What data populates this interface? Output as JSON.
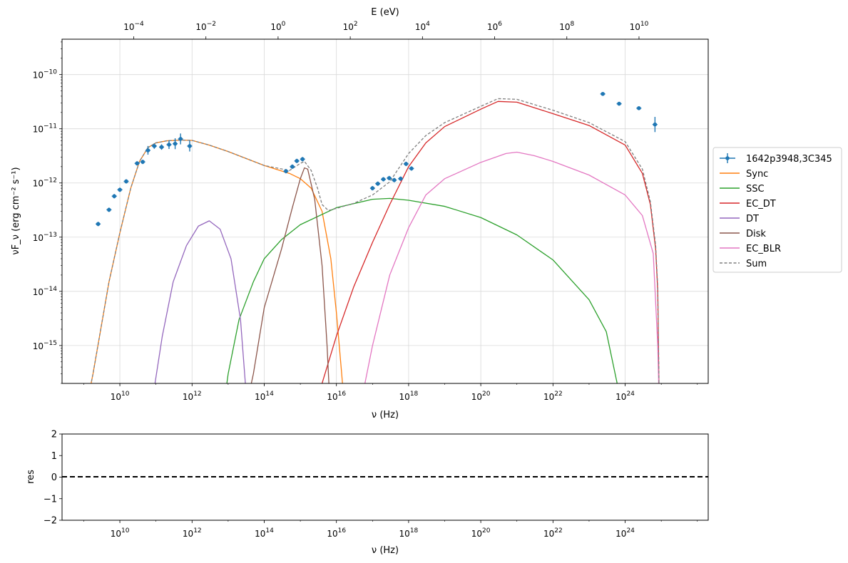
{
  "chart_data": [
    {
      "type": "line",
      "title": "",
      "xlabel": "ν (Hz)",
      "ylabel": "νF_ν (erg cm⁻² s⁻¹)",
      "top_xlabel": "E (eV)",
      "xscale": "log",
      "yscale": "log",
      "xlim": [
        250000000.0,
        2e+26
      ],
      "ylim": [
        2e-16,
        4.5e-10
      ],
      "x_ticks": [
        "10^10",
        "10^12",
        "10^14",
        "10^16",
        "10^18",
        "10^20",
        "10^22",
        "10^24"
      ],
      "y_ticks": [
        "10^-15",
        "10^-14",
        "10^-13",
        "10^-12",
        "10^-11",
        "10^-10"
      ],
      "top_ticks": [
        "10^-4",
        "10^-2",
        "10^0",
        "10^2",
        "10^4",
        "10^6",
        "10^8",
        "10^10"
      ],
      "grid": true,
      "legend_position": "outside-right",
      "observed": {
        "name": "1642p3948,3C345",
        "color": "#1f77b4",
        "points": [
          {
            "x": 2500000000.0,
            "y": 1.75e-13,
            "yerr": 0.04
          },
          {
            "x": 5000000000.0,
            "y": 3.2e-13,
            "yerr": 0.04
          },
          {
            "x": 7000000000.0,
            "y": 5.7e-13,
            "yerr": 0.04
          },
          {
            "x": 10000000000.0,
            "y": 7.5e-13,
            "yerr": 0.04
          },
          {
            "x": 15000000000.0,
            "y": 1.07e-12,
            "yerr": 0.04
          },
          {
            "x": 30000000000.0,
            "y": 2.3e-12,
            "yerr": 0.04
          },
          {
            "x": 43000000000.0,
            "y": 2.45e-12,
            "yerr": 0.04
          },
          {
            "x": 60000000000.0,
            "y": 4e-12,
            "yerr": 0.08
          },
          {
            "x": 90000000000.0,
            "y": 4.8e-12,
            "yerr": 0.05
          },
          {
            "x": 143000000000.0,
            "y": 4.6e-12,
            "yerr": 0.05
          },
          {
            "x": 230000000000.0,
            "y": 5.1e-12,
            "yerr": 0.08
          },
          {
            "x": 340000000000.0,
            "y": 5.3e-12,
            "yerr": 0.1
          },
          {
            "x": 480000000000.0,
            "y": 6.5e-12,
            "yerr": 0.1
          },
          {
            "x": 860000000000.0,
            "y": 4.8e-12,
            "yerr": 0.1
          },
          {
            "x": 400000000000000.0,
            "y": 1.65e-12,
            "yerr": 0.04
          },
          {
            "x": 600000000000000.0,
            "y": 2e-12,
            "yerr": 0.04
          },
          {
            "x": 800000000000000.0,
            "y": 2.55e-12,
            "yerr": 0.04
          },
          {
            "x": 1150000000000000.0,
            "y": 2.75e-12,
            "yerr": 0.04
          },
          {
            "x": 1e+17,
            "y": 8e-13,
            "yerr": 0.04
          },
          {
            "x": 1.4e+17,
            "y": 9.7e-13,
            "yerr": 0.04
          },
          {
            "x": 2e+17,
            "y": 1.17e-12,
            "yerr": 0.04
          },
          {
            "x": 2.9e+17,
            "y": 1.23e-12,
            "yerr": 0.04
          },
          {
            "x": 4e+17,
            "y": 1.13e-12,
            "yerr": 0.04
          },
          {
            "x": 6e+17,
            "y": 1.2e-12,
            "yerr": 0.04
          },
          {
            "x": 8.5e+17,
            "y": 2.25e-12,
            "yerr": 0.04
          },
          {
            "x": 1.2e+18,
            "y": 1.85e-12,
            "yerr": 0.04
          },
          {
            "x": 2.4e+23,
            "y": 4.4e-11,
            "yerr": 0.03
          },
          {
            "x": 6.8e+23,
            "y": 2.9e-11,
            "yerr": 0.03
          },
          {
            "x": 2.4e+24,
            "y": 2.4e-11,
            "yerr": 0.03
          },
          {
            "x": 6.7e+24,
            "y": 1.2e-11,
            "yerr": 0.14
          }
        ]
      },
      "series": [
        {
          "name": "Sync",
          "color": "#ff7f0e",
          "dash": false,
          "points": [
            [
              1300000000.0,
              1e-16
            ],
            [
              1800000000.0,
              3e-16
            ],
            [
              5000000000.0,
              1.5e-14
            ],
            [
              10000000000.0,
              1.2e-13
            ],
            [
              20000000000.0,
              8e-13
            ],
            [
              35000000000.0,
              2.5e-12
            ],
            [
              60000000000.0,
              4.5e-12
            ],
            [
              100000000000.0,
              5.5e-12
            ],
            [
              200000000000.0,
              6e-12
            ],
            [
              500000000000.0,
              6.2e-12
            ],
            [
              1000000000000.0,
              6.1e-12
            ],
            [
              3000000000000.0,
              5e-12
            ],
            [
              10000000000000.0,
              3.8e-12
            ],
            [
              100000000000000.0,
              2.1e-12
            ],
            [
              500000000000000.0,
              1.5e-12
            ],
            [
              1000000000000000.0,
              1.2e-12
            ],
            [
              2000000000000000.0,
              8e-13
            ],
            [
              4000000000000000.0,
              3e-13
            ],
            [
              7000000000000000.0,
              4e-14
            ],
            [
              1e+16,
              4e-15
            ],
            [
              1.4e+16,
              3e-16
            ],
            [
              1.6e+16,
              1e-16
            ]
          ]
        },
        {
          "name": "SSC",
          "color": "#2ca02c",
          "dash": false,
          "points": [
            [
              8000000000000.0,
              1e-16
            ],
            [
              10000000000000.0,
              3e-16
            ],
            [
              20000000000000.0,
              3e-15
            ],
            [
              50000000000000.0,
              1.5e-14
            ],
            [
              100000000000000.0,
              4e-14
            ],
            [
              300000000000000.0,
              9e-14
            ],
            [
              1000000000000000.0,
              1.7e-13
            ],
            [
              1e+16,
              3.5e-13
            ],
            [
              1e+17,
              5e-13
            ],
            [
              3e+17,
              5.2e-13
            ],
            [
              1e+18,
              4.8e-13
            ],
            [
              1e+19,
              3.7e-13
            ],
            [
              1e+20,
              2.3e-13
            ],
            [
              1e+21,
              1.1e-13
            ],
            [
              1e+22,
              3.8e-14
            ],
            [
              1e+23,
              7e-15
            ],
            [
              3e+23,
              1.8e-15
            ],
            [
              6e+23,
              2e-16
            ],
            [
              7e+23,
              1e-16
            ]
          ]
        },
        {
          "name": "EC_DT",
          "color": "#d62728",
          "dash": false,
          "points": [
            [
              2500000000000000.0,
              1e-16
            ],
            [
              4000000000000000.0,
              2e-16
            ],
            [
              1e+16,
              1.5e-15
            ],
            [
              3e+16,
              1.2e-14
            ],
            [
              1e+17,
              8e-14
            ],
            [
              3e+17,
              4e-13
            ],
            [
              1e+18,
              2e-12
            ],
            [
              3e+18,
              5.5e-12
            ],
            [
              1e+19,
              1.1e-11
            ],
            [
              1e+20,
              2.3e-11
            ],
            [
              3e+20,
              3.2e-11
            ],
            [
              1e+21,
              3.1e-11
            ],
            [
              1e+22,
              1.9e-11
            ],
            [
              1e+23,
              1.15e-11
            ],
            [
              1e+24,
              5e-12
            ],
            [
              3e+24,
              1.5e-12
            ],
            [
              5e+24,
              4e-13
            ],
            [
              7e+24,
              6e-14
            ],
            [
              8e+24,
              1e-14
            ],
            [
              8.7e+24,
              1e-16
            ]
          ]
        },
        {
          "name": "DT",
          "color": "#9467bd",
          "dash": false,
          "points": [
            [
              80000000000.0,
              1e-16
            ],
            [
              150000000000.0,
              1.5e-15
            ],
            [
              300000000000.0,
              1.5e-14
            ],
            [
              700000000000.0,
              7e-14
            ],
            [
              1500000000000.0,
              1.6e-13
            ],
            [
              3000000000000.0,
              2e-13
            ],
            [
              6000000000000.0,
              1.4e-13
            ],
            [
              12000000000000.0,
              4e-14
            ],
            [
              22000000000000.0,
              3e-15
            ],
            [
              30000000000000.0,
              2e-16
            ],
            [
              32000000000000.0,
              1e-16
            ]
          ]
        },
        {
          "name": "Disk",
          "color": "#8c564b",
          "dash": false,
          "points": [
            [
              35000000000000.0,
              1e-16
            ],
            [
              50000000000000.0,
              3e-16
            ],
            [
              100000000000000.0,
              5e-15
            ],
            [
              300000000000000.0,
              6e-14
            ],
            [
              600000000000000.0,
              3.5e-13
            ],
            [
              1000000000000000.0,
              1.2e-12
            ],
            [
              1300000000000000.0,
              1.9e-12
            ],
            [
              1600000000000000.0,
              1.8e-12
            ],
            [
              2500000000000000.0,
              5e-13
            ],
            [
              4000000000000000.0,
              3e-14
            ],
            [
              5500000000000000.0,
              1e-15
            ],
            [
              6500000000000000.0,
              1e-16
            ]
          ]
        },
        {
          "name": "EC_BLR",
          "color": "#e377c2",
          "dash": false,
          "points": [
            [
              5e+16,
              1e-16
            ],
            [
              1e+17,
              1e-15
            ],
            [
              3e+17,
              2e-14
            ],
            [
              1e+18,
              1.5e-13
            ],
            [
              3e+18,
              6e-13
            ],
            [
              1e+19,
              1.2e-12
            ],
            [
              1e+20,
              2.4e-12
            ],
            [
              5e+20,
              3.5e-12
            ],
            [
              1e+21,
              3.7e-12
            ],
            [
              3e+21,
              3.2e-12
            ],
            [
              1e+22,
              2.5e-12
            ],
            [
              1e+23,
              1.4e-12
            ],
            [
              1e+24,
              6e-13
            ],
            [
              3e+24,
              2.5e-13
            ],
            [
              6e+24,
              5e-14
            ],
            [
              8e+24,
              1e-15
            ],
            [
              8.7e+24,
              1e-16
            ]
          ]
        },
        {
          "name": "Sum",
          "color": "#7f7f7f",
          "dash": true,
          "points": [
            [
              1300000000.0,
              1e-16
            ],
            [
              1800000000.0,
              3e-16
            ],
            [
              5000000000.0,
              1.5e-14
            ],
            [
              10000000000.0,
              1.2e-13
            ],
            [
              20000000000.0,
              8e-13
            ],
            [
              35000000000.0,
              2.5e-12
            ],
            [
              60000000000.0,
              4.5e-12
            ],
            [
              100000000000.0,
              5.5e-12
            ],
            [
              200000000000.0,
              6e-12
            ],
            [
              500000000000.0,
              6.2e-12
            ],
            [
              1000000000000.0,
              6.1e-12
            ],
            [
              3000000000000.0,
              5e-12
            ],
            [
              10000000000000.0,
              3.8e-12
            ],
            [
              100000000000000.0,
              2.1e-12
            ],
            [
              500000000000000.0,
              1.7e-12
            ],
            [
              1000000000000000.0,
              2.3e-12
            ],
            [
              1300000000000000.0,
              2.5e-12
            ],
            [
              2000000000000000.0,
              1.7e-12
            ],
            [
              3000000000000000.0,
              8e-13
            ],
            [
              4000000000000000.0,
              4e-13
            ],
            [
              6000000000000000.0,
              3.1e-13
            ],
            [
              1e+16,
              3.4e-13
            ],
            [
              3e+16,
              4.2e-13
            ],
            [
              1e+17,
              6e-13
            ],
            [
              3e+17,
              1.05e-12
            ],
            [
              1e+18,
              3.5e-12
            ],
            [
              3e+18,
              7.5e-12
            ],
            [
              1e+19,
              1.3e-11
            ],
            [
              1e+20,
              2.6e-11
            ],
            [
              3e+20,
              3.6e-11
            ],
            [
              1e+21,
              3.5e-11
            ],
            [
              1e+22,
              2.2e-11
            ],
            [
              1e+23,
              1.3e-11
            ],
            [
              1e+24,
              5.8e-12
            ],
            [
              3e+24,
              1.8e-12
            ],
            [
              5e+24,
              4.5e-13
            ],
            [
              7e+24,
              7e-14
            ],
            [
              8e+24,
              1.2e-14
            ],
            [
              8.8e+24,
              1e-16
            ]
          ]
        }
      ]
    },
    {
      "type": "line",
      "title": "",
      "xlabel": "ν (Hz)",
      "ylabel": "res",
      "xscale": "log",
      "xlim": [
        250000000.0,
        2e+26
      ],
      "ylim": [
        -2,
        2
      ],
      "x_ticks": [
        "10^10",
        "10^12",
        "10^14",
        "10^16",
        "10^18",
        "10^20",
        "10^22",
        "10^24"
      ],
      "y_ticks": [
        "−2",
        "−1",
        "0",
        "1",
        "2"
      ],
      "reference_line": {
        "y": 0,
        "style": "dashed",
        "color": "#000000"
      }
    }
  ]
}
